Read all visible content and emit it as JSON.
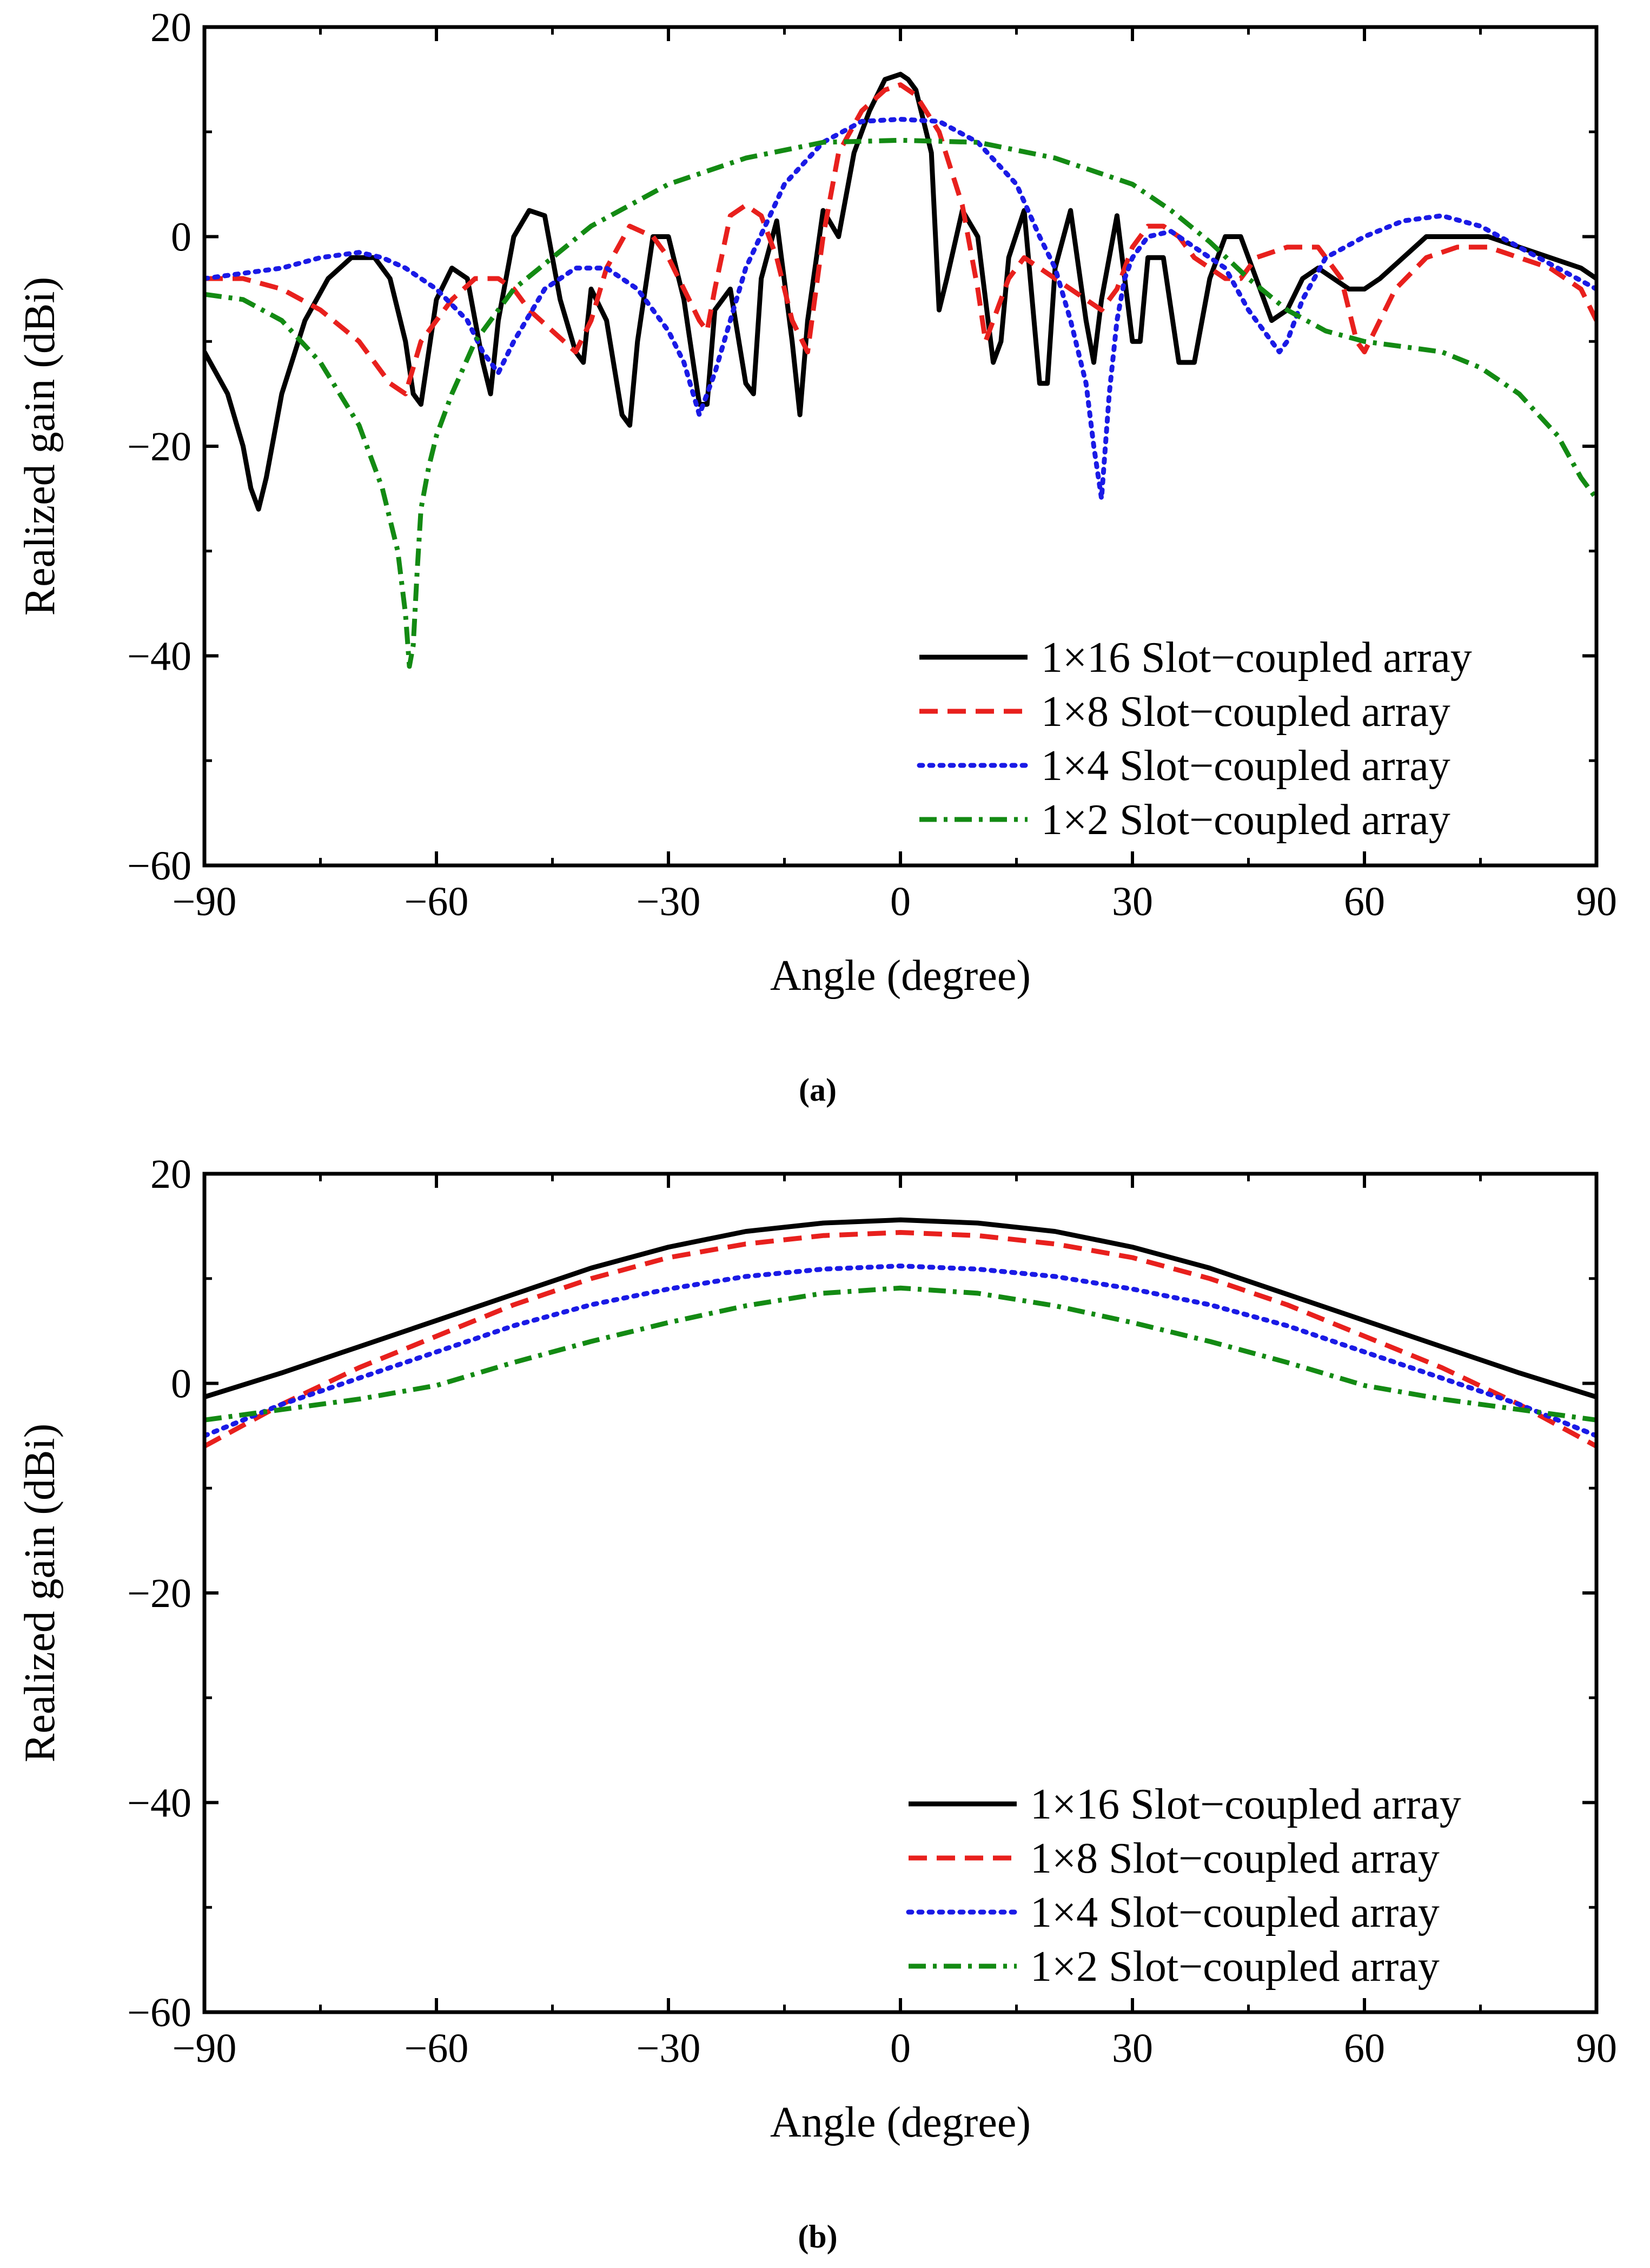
{
  "colors": {
    "axis": "#000000",
    "background": "#ffffff",
    "series": [
      "#000000",
      "#e8201d",
      "#1a1ae6",
      "#138a13"
    ]
  },
  "chart_data": [
    {
      "type": "line",
      "panel_label": "(a)",
      "xlabel": "Angle (degree)",
      "ylabel": "Realized gain (dBi)",
      "xlim": [
        -90,
        90
      ],
      "ylim": [
        -60,
        20
      ],
      "xticks": [
        -90,
        -60,
        -30,
        0,
        30,
        60,
        90
      ],
      "yticks": [
        -60,
        -40,
        -20,
        0,
        20
      ],
      "xtick_labels": [
        "−90",
        "−60",
        "−30",
        "0",
        "30",
        "60",
        "90"
      ],
      "ytick_labels": [
        "−60",
        "−40",
        "−20",
        "0",
        "20"
      ],
      "legend_position": "bottom-right",
      "grid": false,
      "series": [
        {
          "name": "1×16 Slot−coupled array",
          "style": "solid",
          "x": [
            -90,
            -87,
            -85,
            -84,
            -83,
            -82,
            -80,
            -77,
            -74,
            -71,
            -68,
            -66,
            -64,
            -63,
            -62,
            -60,
            -58,
            -56,
            -54,
            -53,
            -52,
            -50,
            -48,
            -46,
            -44,
            -42,
            -41,
            -40,
            -38,
            -36,
            -35,
            -34,
            -32,
            -30,
            -28,
            -26,
            -25,
            -24,
            -22,
            -20,
            -19,
            -18,
            -16,
            -14,
            -13,
            -12,
            -10,
            -8,
            -6,
            -4,
            -2,
            0,
            1,
            2,
            4,
            5,
            6,
            8,
            10,
            12,
            13,
            14,
            16,
            18,
            19,
            20,
            22,
            24,
            25,
            26,
            28,
            30,
            31,
            32,
            34,
            36,
            38,
            40,
            41,
            42,
            44,
            46,
            48,
            50,
            52,
            54,
            56,
            58,
            60,
            62,
            65,
            68,
            72,
            76,
            80,
            84,
            88,
            90
          ],
          "y": [
            -11,
            -15,
            -20,
            -24,
            -26,
            -23,
            -15,
            -8,
            -4,
            -2,
            -2,
            -4,
            -10,
            -15,
            -16,
            -6,
            -3,
            -4,
            -12,
            -15,
            -8,
            0,
            2.5,
            2,
            -6,
            -11,
            -12,
            -5,
            -8,
            -17,
            -18,
            -10,
            0,
            0,
            -6,
            -16,
            -16,
            -7,
            -5,
            -14,
            -15,
            -4,
            1.5,
            -10,
            -17,
            -8,
            2.5,
            0,
            8,
            12,
            15,
            15.5,
            15,
            14,
            8,
            -7,
            -4,
            2.5,
            0,
            -12,
            -10,
            -2,
            2.5,
            -14,
            -14,
            -3,
            2.5,
            -8,
            -12,
            -6,
            2,
            -10,
            -10,
            -2,
            -2,
            -12,
            -12,
            -4,
            -2,
            0,
            0,
            -4,
            -8,
            -7,
            -4,
            -3,
            -4,
            -5,
            -5,
            -4,
            -2,
            0,
            0,
            0,
            -1,
            -2,
            -3,
            -4
          ]
        },
        {
          "name": "1×8 Slot−coupled array",
          "style": "dashed",
          "x": [
            -90,
            -85,
            -80,
            -75,
            -70,
            -66,
            -64,
            -62,
            -58,
            -55,
            -52,
            -50,
            -48,
            -45,
            -42,
            -40,
            -38,
            -35,
            -32,
            -30,
            -28,
            -26,
            -25,
            -24,
            -22,
            -20,
            -18,
            -16,
            -14,
            -12,
            -10,
            -8,
            -5,
            -2,
            0,
            2,
            5,
            8,
            10,
            11,
            12,
            14,
            16,
            18,
            20,
            22,
            24,
            26,
            28,
            30,
            32,
            34,
            36,
            38,
            40,
            42,
            44,
            46,
            50,
            54,
            57,
            59,
            60,
            62,
            64,
            68,
            72,
            76,
            80,
            84,
            88,
            90
          ],
          "y": [
            -4,
            -4,
            -5,
            -7,
            -10,
            -14,
            -15,
            -10,
            -6,
            -4,
            -4,
            -5,
            -7,
            -9,
            -11,
            -8,
            -3,
            1,
            0,
            -2,
            -5,
            -8,
            -9,
            -5,
            2,
            3,
            2,
            -2,
            -8,
            -11,
            0,
            8,
            12,
            14,
            14.5,
            13.5,
            10,
            3,
            -5,
            -10,
            -8,
            -4,
            -2,
            -3,
            -4,
            -5,
            -6,
            -7,
            -5,
            -1,
            1,
            1,
            0,
            -2,
            -3,
            -4,
            -4,
            -2,
            -1,
            -1,
            -4,
            -10,
            -11,
            -8,
            -5,
            -2,
            -1,
            -1,
            -2,
            -3,
            -5,
            -8
          ]
        },
        {
          "name": "1×4 Slot−coupled array",
          "style": "dotted",
          "x": [
            -90,
            -85,
            -80,
            -75,
            -70,
            -67,
            -64,
            -60,
            -56,
            -54,
            -52,
            -50,
            -46,
            -42,
            -38,
            -34,
            -30,
            -28,
            -26,
            -24,
            -20,
            -15,
            -10,
            -5,
            0,
            5,
            10,
            15,
            18,
            20,
            22,
            24,
            25,
            26,
            27,
            28,
            29,
            30,
            32,
            35,
            38,
            42,
            45,
            48,
            49,
            50,
            52,
            55,
            60,
            65,
            70,
            75,
            80,
            85,
            90
          ],
          "y": [
            -4,
            -3.5,
            -3,
            -2,
            -1.5,
            -2,
            -3,
            -5,
            -8,
            -11,
            -13,
            -10,
            -5,
            -3,
            -3,
            -5,
            -9,
            -12,
            -17,
            -13,
            -3,
            5,
            9,
            11,
            11.2,
            11,
            9,
            5,
            0,
            -3,
            -8,
            -14,
            -20,
            -25,
            -15,
            -8,
            -4,
            -2,
            0,
            0.5,
            -1,
            -3,
            -7,
            -10,
            -11,
            -10,
            -6,
            -2,
            0,
            1.5,
            2,
            1,
            -1,
            -3,
            -5
          ]
        },
        {
          "name": "1×2 Slot−coupled array",
          "style": "dashdot",
          "x": [
            -90,
            -85,
            -80,
            -75,
            -70,
            -67,
            -65,
            -64,
            -63.5,
            -63,
            -62.5,
            -62,
            -61,
            -60,
            -58,
            -55,
            -50,
            -45,
            -40,
            -30,
            -20,
            -10,
            0,
            10,
            20,
            30,
            35,
            40,
            45,
            50,
            55,
            60,
            65,
            70,
            75,
            80,
            85,
            88,
            90
          ],
          "y": [
            -5.5,
            -6,
            -8,
            -12,
            -18,
            -24,
            -30,
            -36,
            -41,
            -39,
            -32,
            -26,
            -22,
            -19,
            -15,
            -10,
            -5,
            -2,
            1,
            5,
            7.5,
            9,
            9.2,
            9,
            7.5,
            5,
            2.5,
            -0.5,
            -4,
            -7,
            -9,
            -10,
            -10.5,
            -11,
            -12.5,
            -15,
            -19,
            -23,
            -25
          ]
        }
      ]
    },
    {
      "type": "line",
      "panel_label": "(b)",
      "xlabel": "Angle (degree)",
      "ylabel": "Realized gain (dBi)",
      "xlim": [
        -90,
        90
      ],
      "ylim": [
        -60,
        20
      ],
      "xticks": [
        -90,
        -60,
        -30,
        0,
        30,
        60,
        90
      ],
      "yticks": [
        -60,
        -40,
        -20,
        0,
        20
      ],
      "xtick_labels": [
        "−90",
        "−60",
        "−30",
        "0",
        "30",
        "60",
        "90"
      ],
      "ytick_labels": [
        "−60",
        "−40",
        "−20",
        "0",
        "20"
      ],
      "legend_position": "bottom-right",
      "grid": false,
      "series": [
        {
          "name": "1×16 Slot−coupled array",
          "style": "solid",
          "x": [
            -90,
            -80,
            -70,
            -60,
            -50,
            -40,
            -30,
            -20,
            -10,
            0,
            10,
            20,
            30,
            40,
            50,
            60,
            70,
            80,
            90
          ],
          "y": [
            -1.3,
            1,
            3.5,
            6,
            8.5,
            11,
            13,
            14.5,
            15.3,
            15.6,
            15.3,
            14.5,
            13,
            11,
            8.5,
            6,
            3.5,
            1,
            -1.3
          ]
        },
        {
          "name": "1×8 Slot−coupled array",
          "style": "dashed",
          "x": [
            -90,
            -80,
            -70,
            -60,
            -50,
            -40,
            -30,
            -20,
            -10,
            0,
            10,
            20,
            30,
            40,
            50,
            60,
            70,
            80,
            90
          ],
          "y": [
            -6,
            -2,
            1.5,
            4.5,
            7.5,
            10,
            12,
            13.3,
            14.1,
            14.4,
            14.1,
            13.3,
            12,
            10,
            7.5,
            4.5,
            1.5,
            -2,
            -6
          ]
        },
        {
          "name": "1×4 Slot−coupled array",
          "style": "dotted",
          "x": [
            -90,
            -80,
            -70,
            -60,
            -50,
            -40,
            -30,
            -20,
            -10,
            0,
            10,
            20,
            30,
            40,
            50,
            60,
            70,
            80,
            90
          ],
          "y": [
            -5,
            -2,
            0.5,
            3,
            5.5,
            7.5,
            9,
            10.2,
            10.9,
            11.2,
            10.9,
            10.2,
            9,
            7.5,
            5.5,
            3,
            0.5,
            -2,
            -5
          ]
        },
        {
          "name": "1×2 Slot−coupled array",
          "style": "dashdot",
          "x": [
            -90,
            -80,
            -70,
            -60,
            -50,
            -40,
            -30,
            -20,
            -10,
            0,
            10,
            20,
            30,
            40,
            50,
            60,
            70,
            80,
            90
          ],
          "y": [
            -3.5,
            -2.5,
            -1.5,
            -0.2,
            2,
            4,
            5.8,
            7.4,
            8.6,
            9.1,
            8.6,
            7.4,
            5.8,
            4,
            2,
            -0.2,
            -1.5,
            -2.5,
            -3.5
          ]
        }
      ]
    }
  ]
}
